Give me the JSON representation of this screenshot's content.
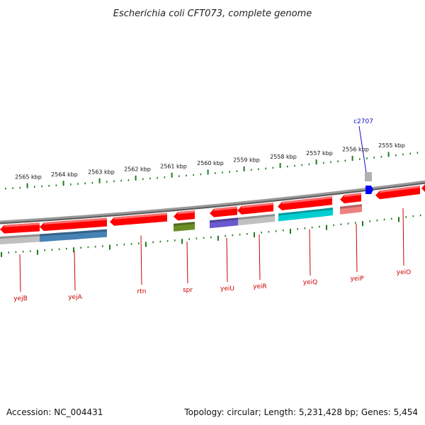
{
  "title": "Escherichia coli CFT073, complete genome",
  "footer": {
    "accession": "Accession: NC_004431",
    "summary": "Topology: circular; Length: 5,231,428 bp; Genes: 5,454"
  },
  "colors": {
    "backbone": "#8a8a8a",
    "tick": "#1e7a1e",
    "forward_gene": "#ff0000",
    "gene_label": "#cc0000",
    "callout": "#1010c0",
    "forward_feature": "#0000ff"
  },
  "ticks": [
    {
      "label": "2565 kbp"
    },
    {
      "label": "2564 kbp"
    },
    {
      "label": "2563 kbp"
    },
    {
      "label": "2562 kbp"
    },
    {
      "label": "2561 kbp"
    },
    {
      "label": "2560 kbp"
    },
    {
      "label": "2559 kbp"
    },
    {
      "label": "2558 kbp"
    },
    {
      "label": "2557 kbp"
    },
    {
      "label": "2556 kbp"
    },
    {
      "label": "2555 kbp"
    }
  ],
  "callout": {
    "label": "c2707"
  },
  "genes": [
    {
      "name": "yejB",
      "strand": "reverse",
      "feature_color": "#c0c0c0"
    },
    {
      "name": "yejA",
      "strand": "reverse",
      "feature_color": "#4682b4"
    },
    {
      "name": "rtn",
      "strand": "reverse",
      "feature_color": ""
    },
    {
      "name": "spr",
      "strand": "reverse",
      "feature_color": "#6b8e23"
    },
    {
      "name": "yeiU",
      "strand": "reverse",
      "feature_color": "#6a5acd"
    },
    {
      "name": "yeiR",
      "strand": "reverse",
      "feature_color": "#c0c0c0"
    },
    {
      "name": "yeiQ",
      "strand": "reverse",
      "feature_color": "#00ced1"
    },
    {
      "name": "yeiP",
      "strand": "reverse",
      "feature_color": "#f08080"
    },
    {
      "name": "yeiO",
      "strand": "reverse",
      "feature_color": ""
    }
  ]
}
